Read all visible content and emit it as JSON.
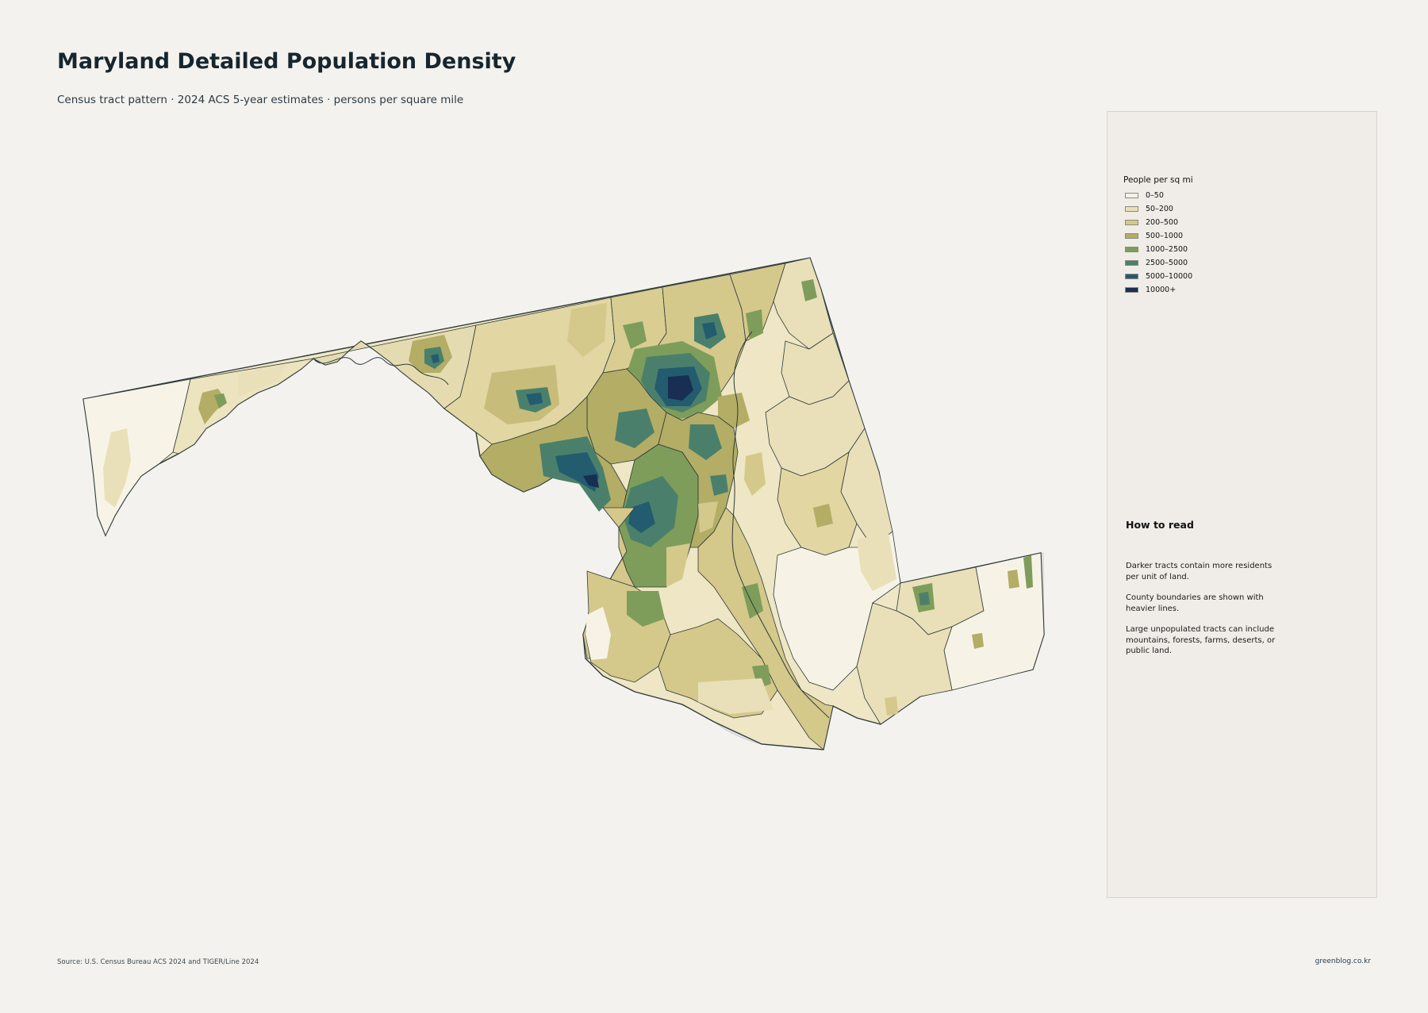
{
  "title": "Maryland Detailed Population Density",
  "subtitle": "Census tract pattern · 2024 ACS 5-year estimates · persons per square mile",
  "legend": {
    "title": "People per sq mi",
    "items": [
      {
        "label": "0–50",
        "color": "#f6f3e6"
      },
      {
        "label": "50–200",
        "color": "#e9e0b9"
      },
      {
        "label": "200–500",
        "color": "#d5c88b"
      },
      {
        "label": "500–1000",
        "color": "#b3ad65"
      },
      {
        "label": "1000–2500",
        "color": "#7f9d5a"
      },
      {
        "label": "2500–5000",
        "color": "#4a806b"
      },
      {
        "label": "5000–10000",
        "color": "#235c6f"
      },
      {
        "label": "10000+",
        "color": "#182e52"
      }
    ]
  },
  "how_to_read": {
    "title": "How to read",
    "paragraphs": [
      "Darker tracts contain more residents per unit of land.",
      "County boundaries are shown with heavier lines.",
      "Large unpopulated tracts can include mountains, forests, farms, deserts, or public land."
    ]
  },
  "source": "Source: U.S. Census Bureau ACS 2024 and TIGER/Line 2024",
  "credit": "greenblog.co.kr",
  "colors": {
    "background": "#f4f2ee",
    "water": "#e4e4e6",
    "outline": "#2c3a3a"
  }
}
